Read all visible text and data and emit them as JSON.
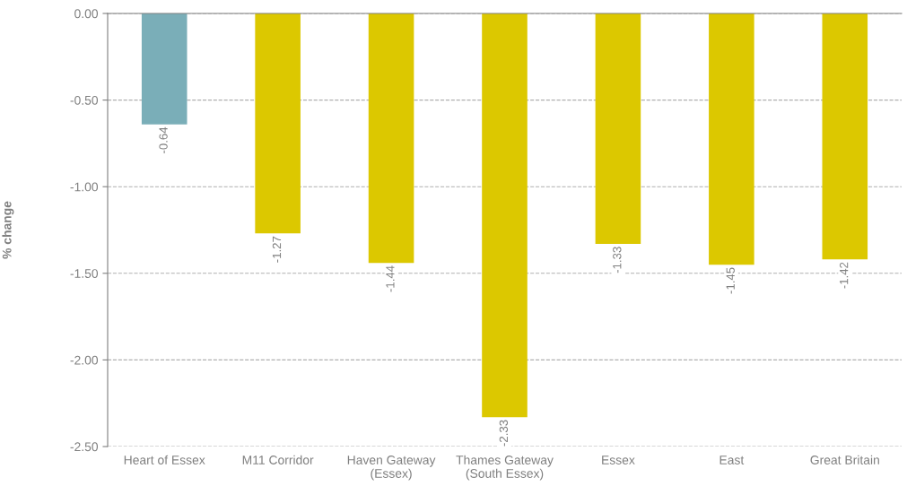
{
  "chart_data": {
    "type": "bar",
    "ylabel": "% change",
    "categories": [
      "Heart of Essex",
      "M11 Corridor",
      "Haven Gateway\n(Essex)",
      "Thames Gateway\n(South Essex)",
      "Essex",
      "East",
      "Great Britain"
    ],
    "values": [
      -0.64,
      -1.27,
      -1.44,
      -2.33,
      -1.33,
      -1.45,
      -1.42
    ],
    "colors": [
      "#7aaeb8",
      "#dcc800",
      "#dcc800",
      "#dcc800",
      "#dcc800",
      "#dcc800",
      "#dcc800"
    ],
    "ylim": [
      -2.5,
      0
    ],
    "yticks": [
      {
        "value": -2.5,
        "label": "-2.50"
      },
      {
        "value": -2,
        "label": "-2.00"
      },
      {
        "value": -1.5,
        "label": "-1.50"
      },
      {
        "value": -1,
        "label": "-1.00"
      },
      {
        "value": -0.5,
        "label": "-0.50"
      },
      {
        "value": 0,
        "label": "0.00"
      }
    ],
    "grid": "y",
    "data_labels": true
  }
}
